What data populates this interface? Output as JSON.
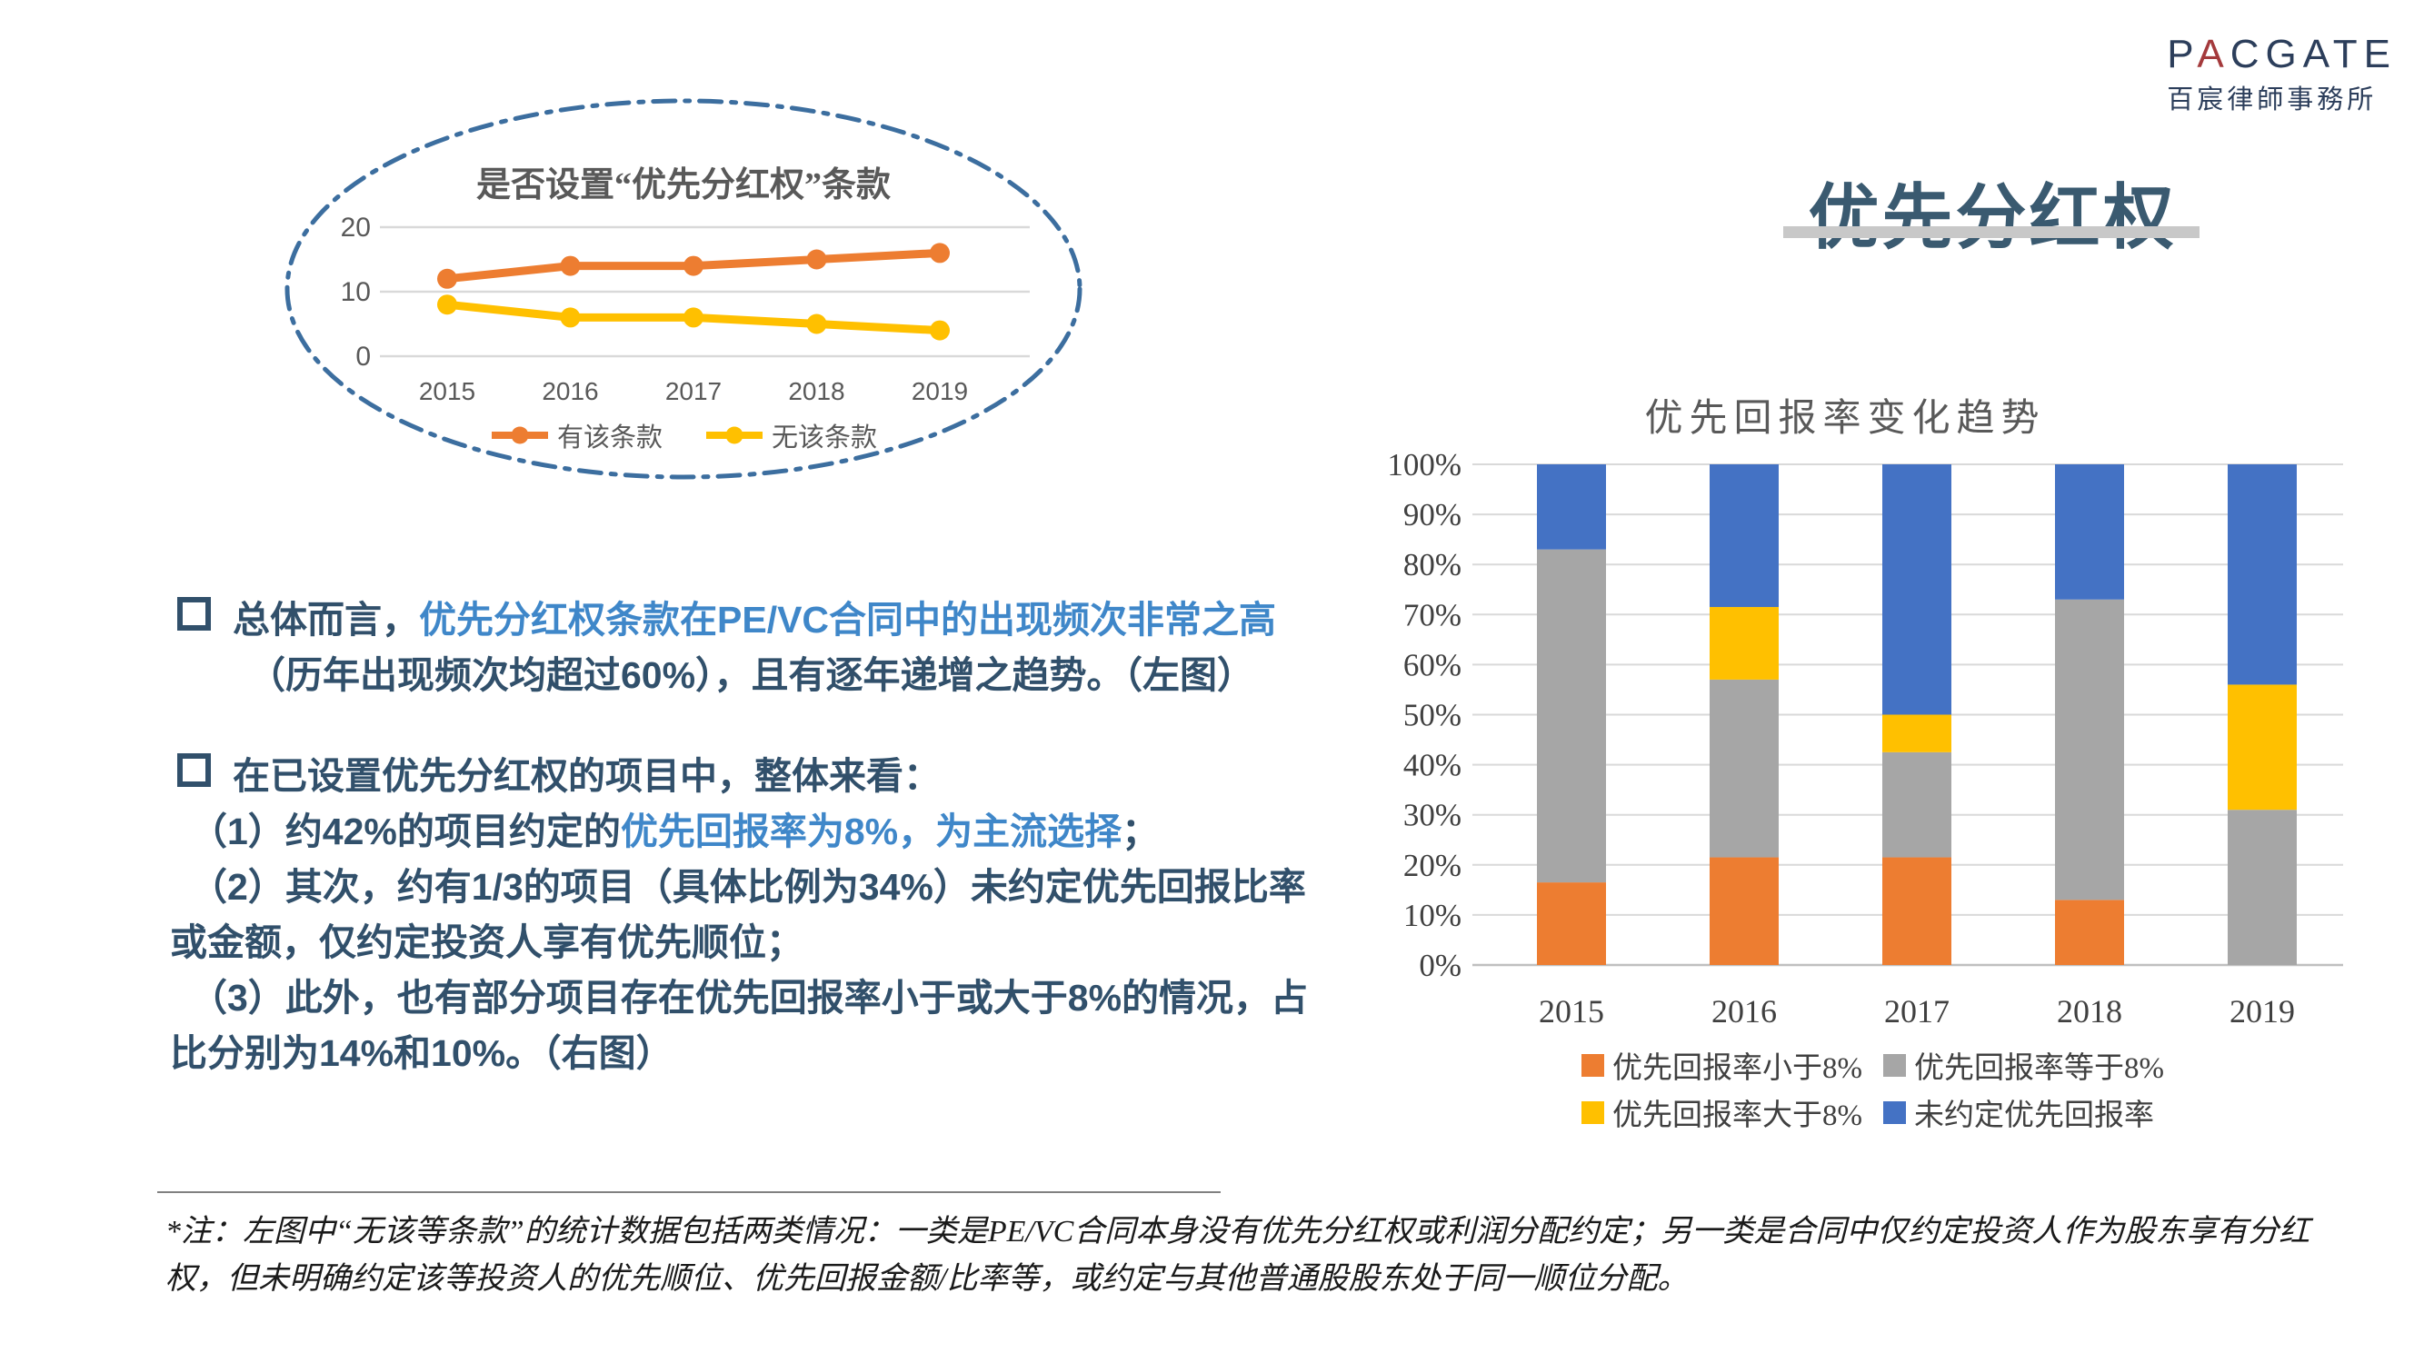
{
  "logo": {
    "latin_pre": "P",
    "latin_red": "A",
    "latin_post": "CGATE",
    "cn": "百宸律師事務所"
  },
  "title": {
    "text": "优先分红权"
  },
  "colors": {
    "orange": "#ED7D31",
    "yellow": "#FFC000",
    "gray": "#A6A6A6",
    "blue": "#4472C4",
    "navy_text": "#31506B",
    "highlight_blue": "#3F87C9",
    "slate_title": "#3A5A70",
    "oval_border": "#3C6E9F",
    "chart_text": "#595959",
    "gridline": "#D9D9D9",
    "logo_navy": "#2C3E5B",
    "logo_red": "#A43A3C",
    "underline_gray": "#C8C8C8"
  },
  "chart_data": [
    {
      "type": "line",
      "title": "是否设置“优先分红权”条款",
      "x": [
        "2015",
        "2016",
        "2017",
        "2018",
        "2019"
      ],
      "series": [
        {
          "name": "有该条款",
          "color": "#ED7D31",
          "values": [
            12,
            14,
            14,
            15,
            16
          ]
        },
        {
          "name": "无该条款",
          "color": "#FFC000",
          "values": [
            8,
            6,
            6,
            5,
            4
          ]
        }
      ],
      "ylim": [
        0,
        20
      ],
      "yticks": [
        0,
        10,
        20
      ],
      "grid": true,
      "legend_position": "bottom"
    },
    {
      "type": "bar",
      "subtype": "stacked-100-percent",
      "title": "优先回报率变化趋势",
      "categories": [
        "2015",
        "2016",
        "2017",
        "2018",
        "2019"
      ],
      "series": [
        {
          "name": "优先回报率小于8%",
          "color": "#ED7D31",
          "values": [
            16.5,
            21.5,
            21.5,
            13,
            0
          ]
        },
        {
          "name": "优先回报率等于8%",
          "color": "#A6A6A6",
          "values": [
            66.5,
            35.5,
            21,
            60,
            31
          ]
        },
        {
          "name": "优先回报率大于8%",
          "color": "#FFC000",
          "values": [
            0,
            14.5,
            7.5,
            0,
            25
          ]
        },
        {
          "name": "未约定优先回报率",
          "color": "#4472C4",
          "values": [
            17,
            28.5,
            50,
            27,
            44
          ]
        }
      ],
      "ylim": [
        0,
        100
      ],
      "ytick_step": 10,
      "ytick_format": "percent",
      "grid": true,
      "legend_position": "bottom"
    }
  ],
  "body": {
    "lines": [
      {
        "kind": "bullet",
        "runs": [
          {
            "text": "总体而言，",
            "style": "normal"
          },
          {
            "text": "优先分红权条款在PE/VC合同中的出现频次非常之高",
            "style": "highlight"
          }
        ]
      },
      {
        "kind": "hang",
        "runs": [
          {
            "text": "（历年出现频次均超过60%），且有逐年递增之趋势。（左图）",
            "style": "normal"
          }
        ]
      },
      {
        "kind": "bullet gap",
        "runs": [
          {
            "text": "在已设置优先分红权的项目中，整体来看：",
            "style": "normal"
          }
        ]
      },
      {
        "kind": "num",
        "runs": [
          {
            "text": "（1）约42%的项目约定的",
            "style": "normal"
          },
          {
            "text": "优先回报率为8%，为主流选择",
            "style": "highlight"
          },
          {
            "text": "；",
            "style": "normal"
          }
        ]
      },
      {
        "kind": "num",
        "runs": [
          {
            "text": "（2）其次，约有1/3的项目（具体比例为34%）未约定优先回报比率",
            "style": "normal"
          }
        ]
      },
      {
        "kind": "flush",
        "runs": [
          {
            "text": "或金额，仅约定投资人享有优先顺位；",
            "style": "normal"
          }
        ]
      },
      {
        "kind": "num",
        "runs": [
          {
            "text": "（3）此外，也有部分项目存在优先回报率小于或大于8%的情况，占",
            "style": "normal"
          }
        ]
      },
      {
        "kind": "flush",
        "runs": [
          {
            "text": "比分别为14%和10%。（右图）",
            "style": "normal"
          }
        ]
      }
    ]
  },
  "footnote": {
    "line1": "*注：左图中“无该等条款”的统计数据包括两类情况：一类是PE/VC合同本身没有优先分红权或利润分配约定；另一类是合同中仅约定投资人作为股东享有分红",
    "line2": "权，但未明确约定该等投资人的优先顺位、优先回报金额/比率等，或约定与其他普通股股东处于同一顺位分配。"
  }
}
